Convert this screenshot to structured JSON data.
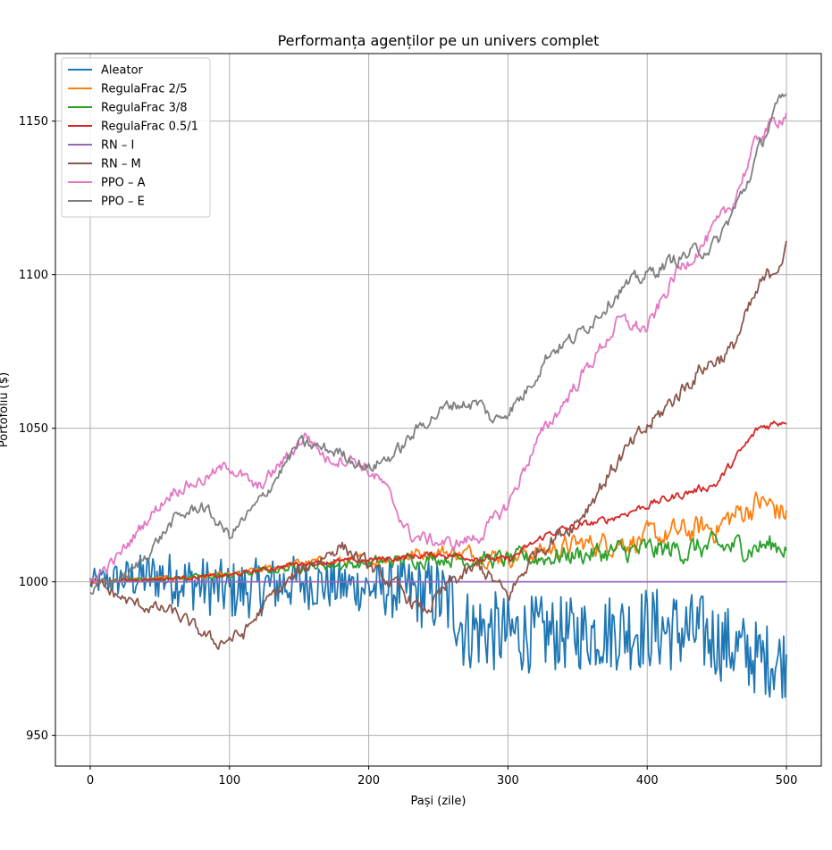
{
  "chart_data": {
    "type": "line",
    "title": "Performanța agenților pe un univers complet",
    "xlabel": "Pași (zile)",
    "ylabel": "Portofoliu ($)",
    "xlim": [
      -25,
      525
    ],
    "ylim": [
      940,
      1172
    ],
    "xticks": [
      0,
      100,
      200,
      300,
      400,
      500
    ],
    "yticks": [
      950,
      1000,
      1050,
      1100,
      1150
    ],
    "grid": true,
    "legend_position": "top-left",
    "series": [
      {
        "name": "Aleator",
        "color": "#1f77b4",
        "anchors": [
          [
            0,
            1000
          ],
          [
            50,
            1002
          ],
          [
            100,
            997
          ],
          [
            150,
            1000
          ],
          [
            200,
            998
          ],
          [
            230,
            997
          ],
          [
            250,
            995
          ],
          [
            262,
            992
          ],
          [
            268,
            985
          ],
          [
            300,
            983
          ],
          [
            350,
            983
          ],
          [
            400,
            985
          ],
          [
            440,
            983
          ],
          [
            480,
            975
          ],
          [
            500,
            974
          ]
        ],
        "amplitude": [
          [
            0,
            4
          ],
          [
            40,
            8
          ],
          [
            100,
            10
          ],
          [
            200,
            8
          ],
          [
            262,
            14
          ],
          [
            350,
            12
          ],
          [
            400,
            14
          ],
          [
            500,
            12
          ]
        ]
      },
      {
        "name": "RegulaFrac 2/5",
        "color": "#ff7f0e",
        "anchors": [
          [
            0,
            1000
          ],
          [
            50,
            1001
          ],
          [
            100,
            1002
          ],
          [
            150,
            1006
          ],
          [
            200,
            1007
          ],
          [
            250,
            1010
          ],
          [
            300,
            1008
          ],
          [
            350,
            1012
          ],
          [
            400,
            1014
          ],
          [
            450,
            1018
          ],
          [
            480,
            1026
          ],
          [
            500,
            1022
          ]
        ],
        "amplitude": [
          [
            0,
            0.5
          ],
          [
            100,
            1
          ],
          [
            200,
            2
          ],
          [
            300,
            3
          ],
          [
            400,
            4
          ],
          [
            500,
            5
          ]
        ]
      },
      {
        "name": "RegulaFrac 3/8",
        "color": "#2ca02c",
        "anchors": [
          [
            0,
            1000
          ],
          [
            50,
            1001
          ],
          [
            100,
            1002
          ],
          [
            150,
            1005
          ],
          [
            200,
            1006
          ],
          [
            250,
            1008
          ],
          [
            300,
            1007
          ],
          [
            350,
            1009
          ],
          [
            400,
            1010
          ],
          [
            450,
            1011
          ],
          [
            500,
            1012
          ]
        ],
        "amplitude": [
          [
            0,
            0.5
          ],
          [
            100,
            1
          ],
          [
            200,
            2
          ],
          [
            300,
            3
          ],
          [
            400,
            4
          ],
          [
            500,
            4
          ]
        ]
      },
      {
        "name": "RegulaFrac 0.5/1",
        "color": "#d62728",
        "anchors": [
          [
            0,
            1000
          ],
          [
            50,
            1001
          ],
          [
            100,
            1002
          ],
          [
            150,
            1006
          ],
          [
            200,
            1007
          ],
          [
            250,
            1009
          ],
          [
            300,
            1007
          ],
          [
            330,
            1016
          ],
          [
            370,
            1020
          ],
          [
            400,
            1025
          ],
          [
            450,
            1032
          ],
          [
            480,
            1050
          ],
          [
            500,
            1053
          ]
        ],
        "amplitude": [
          [
            0,
            0.4
          ],
          [
            200,
            1
          ],
          [
            500,
            1.5
          ]
        ]
      },
      {
        "name": "RN – I",
        "color": "#9467bd",
        "anchors": [
          [
            0,
            1000
          ],
          [
            500,
            1000
          ]
        ],
        "amplitude": [
          [
            0,
            0
          ],
          [
            500,
            0
          ]
        ]
      },
      {
        "name": "RN – M",
        "color": "#8c564b",
        "anchors": [
          [
            0,
            1000
          ],
          [
            30,
            993
          ],
          [
            60,
            990
          ],
          [
            90,
            980
          ],
          [
            110,
            983
          ],
          [
            130,
            995
          ],
          [
            150,
            1003
          ],
          [
            180,
            1012
          ],
          [
            200,
            1005
          ],
          [
            220,
            998
          ],
          [
            240,
            990
          ],
          [
            260,
            1000
          ],
          [
            280,
            1005
          ],
          [
            300,
            995
          ],
          [
            320,
            1010
          ],
          [
            350,
            1020
          ],
          [
            380,
            1040
          ],
          [
            400,
            1050
          ],
          [
            420,
            1060
          ],
          [
            440,
            1070
          ],
          [
            460,
            1075
          ],
          [
            480,
            1095
          ],
          [
            500,
            1108
          ]
        ],
        "amplitude": [
          [
            0,
            2
          ],
          [
            500,
            3
          ]
        ]
      },
      {
        "name": "PPO – A",
        "color": "#e377c2",
        "anchors": [
          [
            0,
            1000
          ],
          [
            20,
            1008
          ],
          [
            40,
            1020
          ],
          [
            60,
            1030
          ],
          [
            80,
            1033
          ],
          [
            100,
            1038
          ],
          [
            120,
            1030
          ],
          [
            140,
            1040
          ],
          [
            155,
            1048
          ],
          [
            170,
            1040
          ],
          [
            190,
            1040
          ],
          [
            210,
            1032
          ],
          [
            230,
            1015
          ],
          [
            260,
            1012
          ],
          [
            280,
            1015
          ],
          [
            300,
            1025
          ],
          [
            320,
            1045
          ],
          [
            350,
            1065
          ],
          [
            380,
            1085
          ],
          [
            400,
            1082
          ],
          [
            420,
            1100
          ],
          [
            440,
            1110
          ],
          [
            460,
            1122
          ],
          [
            480,
            1145
          ],
          [
            500,
            1153
          ]
        ],
        "amplitude": [
          [
            0,
            2
          ],
          [
            500,
            2.5
          ]
        ]
      },
      {
        "name": "PPO – E",
        "color": "#7f7f7f",
        "anchors": [
          [
            0,
            997
          ],
          [
            30,
            1003
          ],
          [
            60,
            1020
          ],
          [
            80,
            1025
          ],
          [
            100,
            1015
          ],
          [
            120,
            1025
          ],
          [
            150,
            1045
          ],
          [
            180,
            1042
          ],
          [
            200,
            1037
          ],
          [
            220,
            1042
          ],
          [
            240,
            1052
          ],
          [
            260,
            1058
          ],
          [
            280,
            1058
          ],
          [
            290,
            1052
          ],
          [
            310,
            1060
          ],
          [
            330,
            1075
          ],
          [
            350,
            1080
          ],
          [
            380,
            1095
          ],
          [
            400,
            1100
          ],
          [
            420,
            1105
          ],
          [
            450,
            1110
          ],
          [
            470,
            1128
          ],
          [
            490,
            1152
          ],
          [
            500,
            1158
          ]
        ],
        "amplitude": [
          [
            0,
            2
          ],
          [
            500,
            2.5
          ]
        ]
      }
    ]
  }
}
